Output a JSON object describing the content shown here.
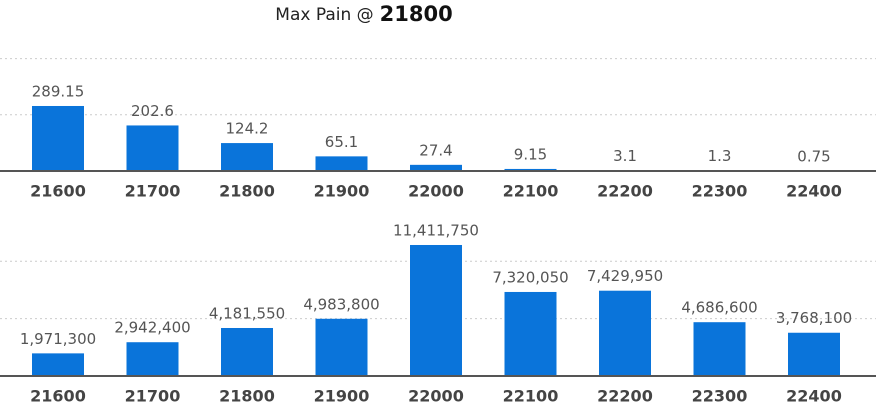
{
  "title": "Max Pain @",
  "title_value": "21800",
  "chart_data": [
    {
      "type": "bar",
      "categories": [
        "21600",
        "21700",
        "21800",
        "21900",
        "22000",
        "22100",
        "22200",
        "22300",
        "22400"
      ],
      "values": [
        289.15,
        202.6,
        124.2,
        65.1,
        27.4,
        9.15,
        3.1,
        1.3,
        0.75
      ],
      "color": "#0a74da",
      "ylim": [
        0,
        600
      ],
      "yticks": [
        250,
        500
      ],
      "grid": true
    },
    {
      "type": "bar",
      "categories": [
        "21600",
        "21700",
        "21800",
        "21900",
        "22000",
        "22100",
        "22200",
        "22300",
        "22400"
      ],
      "values": [
        1971300,
        2942400,
        4181550,
        4983800,
        11411750,
        7320050,
        7429950,
        4686600,
        3768100
      ],
      "value_labels": [
        "1,971,300",
        "2,942,400",
        "4,181,550",
        "4,983,800",
        "11,411,750",
        "7,320,050",
        "7,429,950",
        "4,686,600",
        "3,768,100"
      ],
      "color": "#0a74da",
      "ylim": [
        0,
        15000000
      ],
      "yticks": [
        5000000,
        10000000
      ],
      "grid": true
    }
  ]
}
